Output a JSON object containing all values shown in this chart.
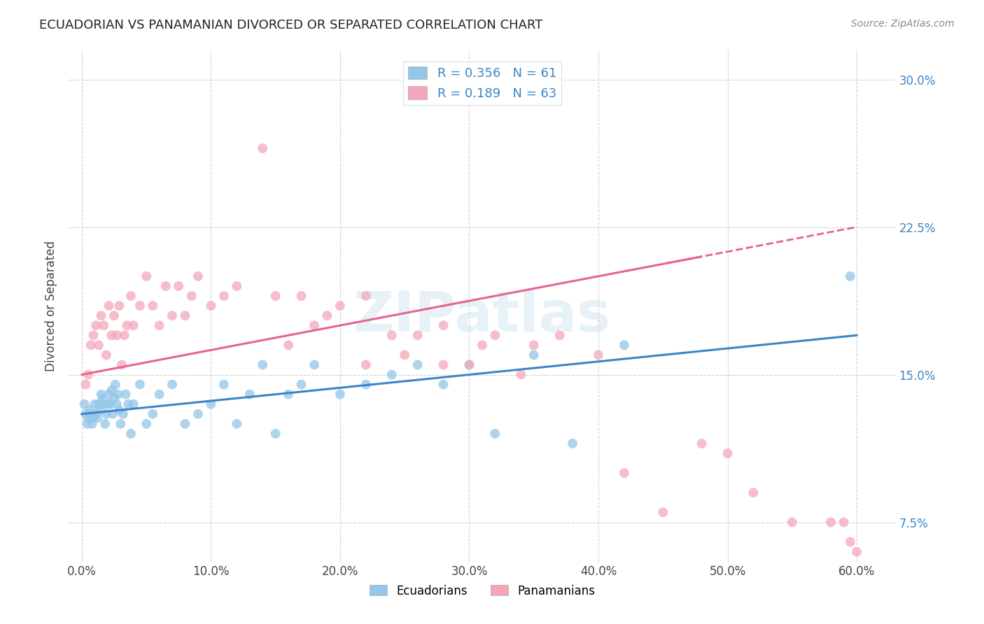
{
  "title": "ECUADORIAN VS PANAMANIAN DIVORCED OR SEPARATED CORRELATION CHART",
  "source": "Source: ZipAtlas.com",
  "ylabel_label": "Divorced or Separated",
  "legend_labels": [
    "Ecuadorians",
    "Panamanians"
  ],
  "blue_color": "#93C6E8",
  "pink_color": "#F4A7B9",
  "blue_line_color": "#3A86C8",
  "pink_line_color": "#E8638C",
  "tick_color": "#3A86C8",
  "watermark": "ZIPatlas",
  "ecu_scatter_x": [
    0.2,
    0.3,
    0.4,
    0.5,
    0.6,
    0.7,
    0.8,
    0.9,
    1.0,
    1.1,
    1.2,
    1.3,
    1.4,
    1.5,
    1.6,
    1.7,
    1.8,
    1.9,
    2.0,
    2.1,
    2.2,
    2.3,
    2.4,
    2.5,
    2.6,
    2.7,
    2.8,
    2.9,
    3.0,
    3.2,
    3.4,
    3.6,
    3.8,
    4.0,
    4.5,
    5.0,
    5.5,
    6.0,
    7.0,
    8.0,
    9.0,
    10.0,
    11.0,
    12.0,
    13.0,
    14.0,
    15.0,
    16.0,
    17.0,
    18.0,
    20.0,
    22.0,
    24.0,
    26.0,
    28.0,
    30.0,
    32.0,
    35.0,
    38.0,
    42.0,
    59.5
  ],
  "ecu_scatter_y": [
    13.5,
    13.0,
    12.5,
    12.8,
    13.2,
    13.0,
    12.5,
    12.8,
    13.5,
    13.0,
    12.8,
    13.5,
    13.2,
    14.0,
    13.8,
    13.5,
    12.5,
    13.0,
    13.5,
    14.0,
    13.5,
    14.2,
    13.0,
    13.8,
    14.5,
    13.5,
    14.0,
    13.2,
    12.5,
    13.0,
    14.0,
    13.5,
    12.0,
    13.5,
    14.5,
    12.5,
    13.0,
    14.0,
    14.5,
    12.5,
    13.0,
    13.5,
    14.5,
    12.5,
    14.0,
    15.5,
    12.0,
    14.0,
    14.5,
    15.5,
    14.0,
    14.5,
    15.0,
    15.5,
    14.5,
    15.5,
    12.0,
    16.0,
    11.5,
    16.5,
    20.0
  ],
  "pan_scatter_x": [
    0.3,
    0.5,
    0.7,
    0.9,
    1.1,
    1.3,
    1.5,
    1.7,
    1.9,
    2.1,
    2.3,
    2.5,
    2.7,
    2.9,
    3.1,
    3.3,
    3.5,
    3.8,
    4.0,
    4.5,
    5.0,
    5.5,
    6.0,
    6.5,
    7.0,
    7.5,
    8.0,
    8.5,
    9.0,
    10.0,
    11.0,
    12.0,
    14.0,
    15.0,
    16.0,
    17.0,
    18.0,
    19.0,
    20.0,
    22.0,
    24.0,
    26.0,
    28.0,
    30.0,
    32.0,
    35.0,
    37.0,
    40.0,
    42.0,
    45.0,
    48.0,
    50.0,
    52.0,
    55.0,
    58.0,
    59.0,
    59.5,
    60.0,
    22.0,
    25.0,
    28.0,
    31.0,
    34.0
  ],
  "pan_scatter_y": [
    14.5,
    15.0,
    16.5,
    17.0,
    17.5,
    16.5,
    18.0,
    17.5,
    16.0,
    18.5,
    17.0,
    18.0,
    17.0,
    18.5,
    15.5,
    17.0,
    17.5,
    19.0,
    17.5,
    18.5,
    20.0,
    18.5,
    17.5,
    19.5,
    18.0,
    19.5,
    18.0,
    19.0,
    20.0,
    18.5,
    19.0,
    19.5,
    26.5,
    19.0,
    16.5,
    19.0,
    17.5,
    18.0,
    18.5,
    19.0,
    17.0,
    17.0,
    17.5,
    15.5,
    17.0,
    16.5,
    17.0,
    16.0,
    10.0,
    8.0,
    11.5,
    11.0,
    9.0,
    7.5,
    7.5,
    7.5,
    6.5,
    6.0,
    15.5,
    16.0,
    15.5,
    16.5,
    15.0
  ],
  "ecu_line_x0": 0,
  "ecu_line_y0": 13.0,
  "ecu_line_x1": 60,
  "ecu_line_y1": 17.0,
  "pan_line_x0": 0,
  "pan_line_y0": 15.0,
  "pan_line_x1": 60,
  "pan_line_y1": 22.5,
  "xlim": [
    -1,
    63
  ],
  "ylim": [
    5.5,
    31.5
  ],
  "x_ticks": [
    0,
    10,
    20,
    30,
    40,
    50,
    60
  ],
  "y_ticks": [
    7.5,
    15.0,
    22.5,
    30.0
  ]
}
